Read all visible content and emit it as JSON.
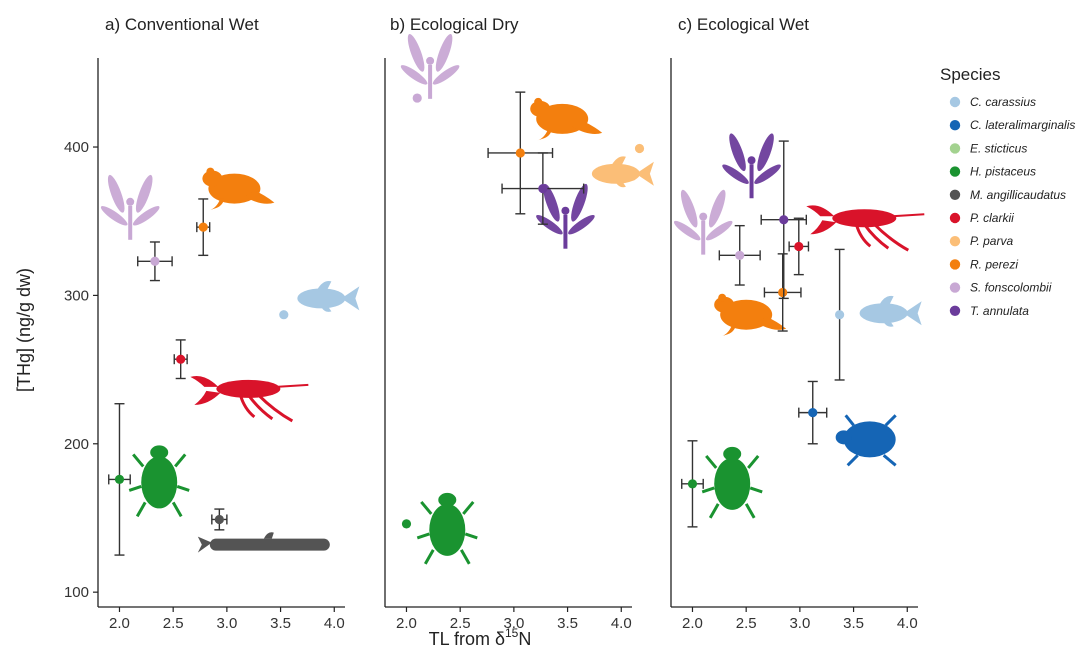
{
  "chart_data": {
    "type": "scatter",
    "ylabel": "[THg] (ng/g dw)",
    "xlabel": {
      "prefix": "TL from δ",
      "sup": "15",
      "suffix": "N"
    },
    "ylim": [
      90,
      460
    ],
    "xlim": [
      1.8,
      4.1
    ],
    "yticks": [
      100,
      200,
      300,
      400
    ],
    "xticks": [
      2.0,
      2.5,
      3.0,
      3.5,
      4.0
    ],
    "legend": {
      "title": "Species",
      "placement": "right",
      "entries": [
        {
          "key": "cc",
          "label": "C. carassius",
          "color": "#a6c8e3"
        },
        {
          "key": "cl",
          "label": "C. lateralimarginalis",
          "color": "#1565b5"
        },
        {
          "key": "es",
          "label": "E. sticticus",
          "color": "#a3d28f"
        },
        {
          "key": "hp",
          "label": "H. pistaceus",
          "color": "#1a9330"
        },
        {
          "key": "ma",
          "label": "M. angillicaudatus",
          "color": "#545454"
        },
        {
          "key": "pc",
          "label": "P. clarkii",
          "color": "#d9132a"
        },
        {
          "key": "pp",
          "label": "P. parva",
          "color": "#fbbe77"
        },
        {
          "key": "rp",
          "label": "R. perezi",
          "color": "#f37f0e"
        },
        {
          "key": "sf",
          "label": "S. fonscolombii",
          "color": "#c8a8d4"
        },
        {
          "key": "ta",
          "label": "T. annulata",
          "color": "#6b3c9b"
        }
      ]
    },
    "panels": [
      {
        "title": "a) Conventional Wet",
        "points": [
          {
            "sp": "hp",
            "x": 2.0,
            "y": 176,
            "xerr": 0.1,
            "yerr": 51
          },
          {
            "sp": "ma",
            "x": 2.93,
            "y": 149,
            "xerr": 0.07,
            "yerr": 7
          },
          {
            "sp": "pc",
            "x": 2.57,
            "y": 257,
            "xerr": 0.06,
            "yerr": 13
          },
          {
            "sp": "rp",
            "x": 2.78,
            "y": 346,
            "xerr": 0.06,
            "yerr": 19
          },
          {
            "sp": "sf",
            "x": 2.33,
            "y": 323,
            "xerr": 0.16,
            "yerr": 13
          },
          {
            "sp": "cc",
            "x": 3.53,
            "y": 287
          }
        ],
        "icons": [
          {
            "sp": "sf",
            "kind": "dragonfly",
            "x": 2.1,
            "y": 355
          },
          {
            "sp": "rp",
            "kind": "frog",
            "x": 3.07,
            "y": 372
          },
          {
            "sp": "cc",
            "kind": "fish",
            "x": 3.88,
            "y": 298
          },
          {
            "sp": "pc",
            "kind": "crayfish",
            "x": 3.2,
            "y": 237
          },
          {
            "sp": "hp",
            "kind": "beetle",
            "x": 2.37,
            "y": 178
          },
          {
            "sp": "ma",
            "kind": "loach",
            "x": 3.4,
            "y": 132
          }
        ]
      },
      {
        "title": "b) Ecological Dry",
        "points": [
          {
            "sp": "sf",
            "x": 2.1,
            "y": 433
          },
          {
            "sp": "rp",
            "x": 3.06,
            "y": 396,
            "xerr": 0.3,
            "yerr": 41
          },
          {
            "sp": "ta",
            "x": 3.27,
            "y": 372,
            "xerr": 0.38,
            "yerr": 24
          },
          {
            "sp": "pp",
            "x": 4.17,
            "y": 399
          },
          {
            "sp": "hp",
            "x": 2.0,
            "y": 146
          }
        ],
        "icons": [
          {
            "sp": "sf",
            "kind": "dragonfly",
            "x": 2.22,
            "y": 450
          },
          {
            "sp": "rp",
            "kind": "frog",
            "x": 3.45,
            "y": 419
          },
          {
            "sp": "pp",
            "kind": "fish",
            "x": 3.95,
            "y": 382
          },
          {
            "sp": "ta",
            "kind": "dragonfly",
            "x": 3.48,
            "y": 349
          },
          {
            "sp": "hp",
            "kind": "beetle",
            "x": 2.38,
            "y": 146
          }
        ]
      },
      {
        "title": "c) Ecological Wet",
        "points": [
          {
            "sp": "hp",
            "x": 2.0,
            "y": 173,
            "xerr": 0.1,
            "yerr": 29
          },
          {
            "sp": "cl",
            "x": 3.12,
            "y": 221,
            "xerr": 0.13,
            "yerr": 21
          },
          {
            "sp": "cc",
            "x": 3.37,
            "y": 287,
            "yerr": 44
          },
          {
            "sp": "sf",
            "x": 2.44,
            "y": 327,
            "xerr": 0.19,
            "yerr": 20
          },
          {
            "sp": "rp",
            "x": 2.84,
            "y": 302,
            "xerr": 0.17,
            "yerr": 26
          },
          {
            "sp": "ta",
            "x": 2.85,
            "y": 351,
            "xerr": 0.21,
            "yerr": 53
          },
          {
            "sp": "pc",
            "x": 2.99,
            "y": 333,
            "xerr": 0.09,
            "yerr": 19
          }
        ],
        "icons": [
          {
            "sp": "sf",
            "kind": "dragonfly",
            "x": 2.1,
            "y": 345
          },
          {
            "sp": "ta",
            "kind": "dragonfly",
            "x": 2.55,
            "y": 383
          },
          {
            "sp": "pc",
            "kind": "crayfish",
            "x": 3.6,
            "y": 352
          },
          {
            "sp": "rp",
            "kind": "frog",
            "x": 2.5,
            "y": 287
          },
          {
            "sp": "cc",
            "kind": "fish",
            "x": 3.78,
            "y": 288
          },
          {
            "sp": "cl",
            "kind": "diving-beetle",
            "x": 3.65,
            "y": 203
          },
          {
            "sp": "hp",
            "kind": "beetle",
            "x": 2.37,
            "y": 177
          }
        ]
      }
    ]
  }
}
